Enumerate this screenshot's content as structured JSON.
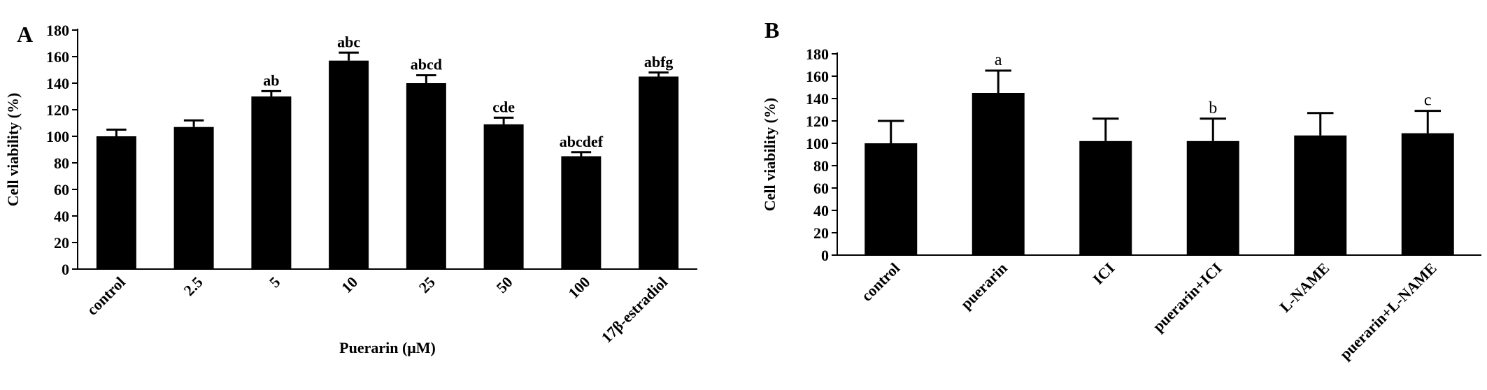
{
  "chart_data": [
    {
      "type": "bar",
      "panel": "A",
      "y_label": "Cell viability (%)",
      "x_label": "Puerarin (μM)",
      "categories": [
        "control",
        "2.5",
        "5",
        "10",
        "25",
        "50",
        "100",
        "17β-estradiol"
      ],
      "values": [
        100,
        107,
        130,
        157,
        140,
        109,
        85,
        145
      ],
      "errors": [
        5,
        5,
        4,
        6,
        6,
        5,
        3,
        3
      ],
      "annotations": [
        null,
        null,
        "ab",
        "abc",
        "abcd",
        "cde",
        "abcdef",
        "abfg"
      ],
      "color": "#000000",
      "ylim": [
        0,
        180
      ],
      "yticks": [
        0,
        20,
        40,
        60,
        80,
        100,
        120,
        140,
        160,
        180
      ]
    },
    {
      "type": "bar",
      "panel": "B",
      "y_label": "Cell viability (%)",
      "categories": [
        "control",
        "puerarin",
        "ICI",
        "puerarin+ICI",
        "L-NAME",
        "puerarin+L-NAME"
      ],
      "values": [
        100,
        145,
        102,
        102,
        107,
        109
      ],
      "errors": [
        20,
        20,
        20,
        20,
        20,
        20
      ],
      "annotations": [
        null,
        "a",
        null,
        "b",
        null,
        "c"
      ],
      "color": "#000000",
      "ylim": [
        0,
        180
      ],
      "yticks": [
        0,
        20,
        40,
        60,
        80,
        100,
        120,
        140,
        160,
        180
      ]
    }
  ]
}
